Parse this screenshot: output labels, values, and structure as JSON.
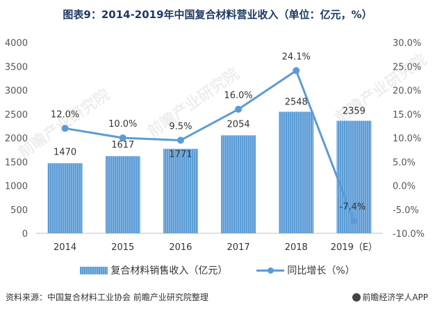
{
  "title": "图表9：2014-2019年中国复合材料营业收入（单位：亿元，%）",
  "chart_data": {
    "type": "bar",
    "categories": [
      "2014",
      "2015",
      "2016",
      "2017",
      "2018",
      "2019（E）"
    ],
    "series": [
      {
        "name": "复合材料销售收入（亿元）",
        "type": "bar",
        "axis": "left",
        "values": [
          1470,
          1617,
          1771,
          2054,
          2548,
          2359
        ],
        "labels": [
          "1470",
          "1617",
          "1771",
          "2054",
          "2548",
          "2359"
        ]
      },
      {
        "name": "同比增长（%）",
        "type": "line",
        "axis": "right",
        "values": [
          12.0,
          10.0,
          9.5,
          16.0,
          24.1,
          -7.4
        ],
        "labels": [
          "12.0%",
          "10.0%",
          "9.5%",
          "16.0%",
          "24.1%",
          "-7.4%"
        ]
      }
    ],
    "y_left": {
      "ylim": [
        0,
        4000
      ],
      "ticks": [
        "0",
        "500",
        "1000",
        "1500",
        "2000",
        "2500",
        "3000",
        "3500",
        "4000"
      ],
      "tick_values": [
        0,
        500,
        1000,
        1500,
        2000,
        2500,
        3000,
        3500,
        4000
      ]
    },
    "y_right": {
      "ylim": [
        -10,
        30
      ],
      "ticks": [
        "-10.0%",
        "-5.0%",
        "0.0%",
        "5.0%",
        "10.0%",
        "15.0%",
        "20.0%",
        "25.0%",
        "30.0%"
      ],
      "tick_values": [
        -10,
        -5,
        0,
        5,
        10,
        15,
        20,
        25,
        30
      ]
    },
    "grid": false,
    "legend_position": "bottom",
    "colors": {
      "bar": "#5b9bd5",
      "line": "#5b9bd5"
    }
  },
  "legend": {
    "bar_label": "复合材料销售收入（亿元）",
    "line_label": "同比增长（%）"
  },
  "footer": {
    "source": "资料来源：中国复合材料工业协会 前瞻产业研究院整理",
    "brand": "前瞻经济学人APP"
  },
  "watermark": {
    "text": "前瞻产业研究院"
  }
}
